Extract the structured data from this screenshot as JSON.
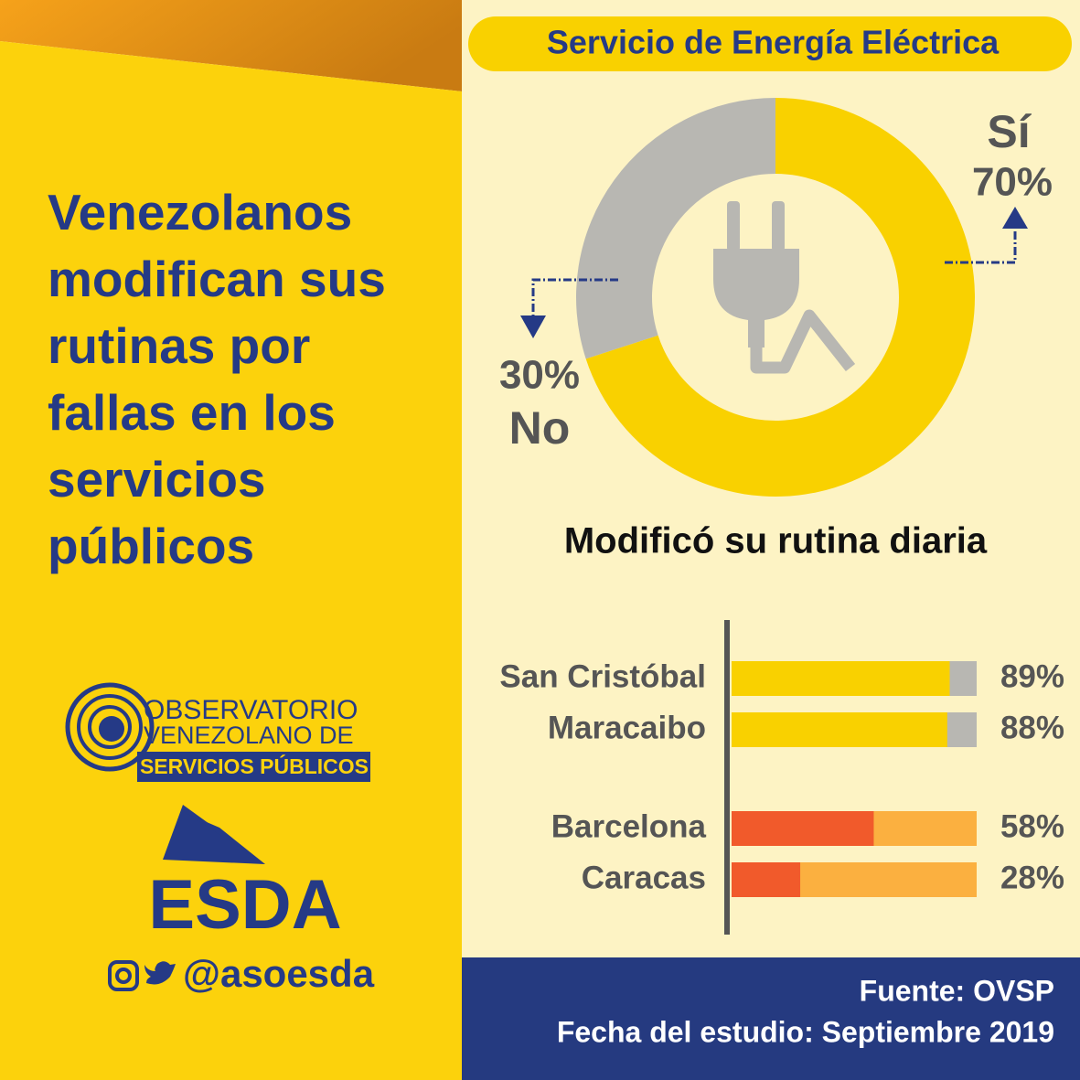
{
  "headline": "Venezolanos modifican sus rutinas por fallas en los servicios públicos",
  "logo": {
    "line1": "OBSERVATORIO",
    "line2": "VENEZOLANO DE",
    "line3": "SERVICIOS PÚBLICOS"
  },
  "brand": "ESDA",
  "handle": "@asoesda",
  "chart_data": [
    {
      "type": "pie",
      "title": "Servicio de Energía Eléctrica",
      "categories": [
        "Sí",
        "No"
      ],
      "values": [
        70,
        30
      ],
      "value_labels": [
        "70%",
        "30%"
      ],
      "colors": [
        "#f9d100",
        "#b8b7b2"
      ]
    },
    {
      "type": "bar",
      "title": "Modificó su rutina diaria",
      "categories": [
        "San Cristóbal",
        "Maracaibo",
        "Barcelona",
        "Caracas"
      ],
      "values": [
        89,
        88,
        58,
        28
      ],
      "value_labels": [
        "89%",
        "88%",
        "58%",
        "28%"
      ],
      "colors": [
        "#f9d100",
        "#f9d100",
        "#f15a2b",
        "#f15a2b"
      ],
      "xlim": [
        0,
        100
      ]
    }
  ],
  "footer": {
    "source": "Fuente: OVSP",
    "date": "Fecha del estudio: Septiembre 2019"
  }
}
